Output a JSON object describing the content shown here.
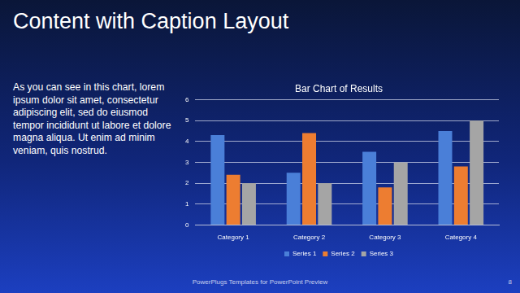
{
  "title": "Content with Caption Layout",
  "caption": "As you can see in this chart, lorem ipsum dolor sit amet, consectetur adipiscing elit, sed do eiusmod tempor incididunt ut labore et dolore magna aliqua. Ut enim ad minim veniam, quis nostrud.",
  "footer": "PowerPlugs Templates for PowerPoint Preview",
  "page_number": "8",
  "chart_data": {
    "type": "bar",
    "title": "Bar Chart of Results",
    "categories": [
      "Category 1",
      "Category 2",
      "Category 3",
      "Category 4"
    ],
    "series": [
      {
        "name": "Series 1",
        "color": "#4a7fd8",
        "values": [
          4.3,
          2.5,
          3.5,
          4.5
        ]
      },
      {
        "name": "Series 2",
        "color": "#ed7d31",
        "values": [
          2.4,
          4.4,
          1.8,
          2.8
        ]
      },
      {
        "name": "Series 3",
        "color": "#a5a5a5",
        "values": [
          2.0,
          2.0,
          3.0,
          5.0
        ]
      }
    ],
    "ylim": [
      0,
      6
    ],
    "yticks": [
      0,
      1,
      2,
      3,
      4,
      5,
      6
    ],
    "grid": true,
    "legend": "bottom"
  }
}
